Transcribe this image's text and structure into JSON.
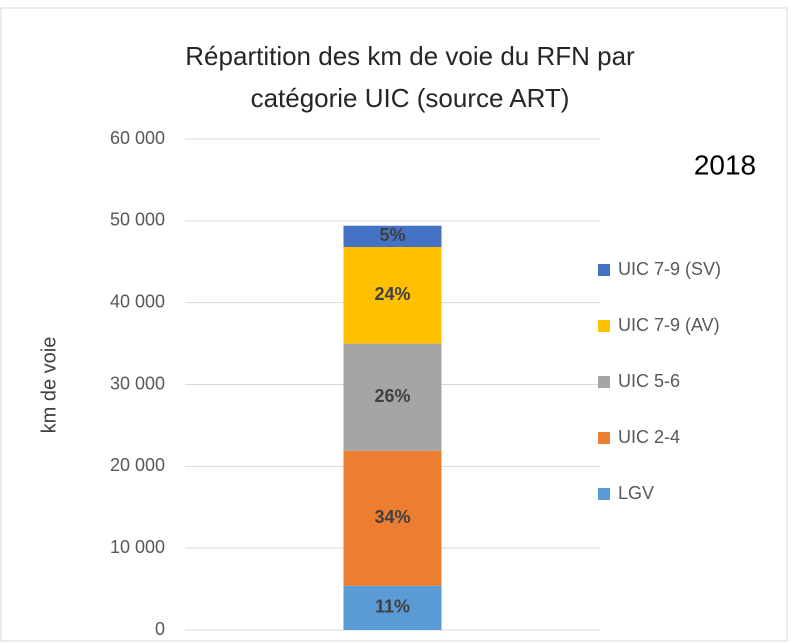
{
  "chart_data": {
    "type": "stacked_bar",
    "title": [
      "Répartition des km de voie du RFN par",
      "catégorie UIC (source ART)"
    ],
    "annotation": "2018",
    "y_label": "km de voie",
    "categories": [
      null
    ],
    "series": [
      {
        "name": "LGV",
        "color": "#5b9bd5",
        "values": [
          5400
        ],
        "share_labels": [
          "11%"
        ]
      },
      {
        "name": "UIC 2-4",
        "color": "#ed7d31",
        "values": [
          16500
        ],
        "share_labels": [
          "34%"
        ]
      },
      {
        "name": "UIC 5-6",
        "color": "#a5a5a5",
        "values": [
          13100
        ],
        "share_labels": [
          "26%"
        ]
      },
      {
        "name": "UIC 7-9 (AV)",
        "color": "#ffc000",
        "values": [
          11800
        ],
        "share_labels": [
          "24%"
        ]
      },
      {
        "name": "UIC 7-9 (SV)",
        "color": "#4472c4",
        "values": [
          2600
        ],
        "share_labels": [
          "5%"
        ]
      }
    ],
    "ylim": [
      0,
      60000
    ],
    "yticks": [
      0,
      {
        "value": 10000,
        "label": "10 000"
      },
      {
        "value": 20000,
        "label": "20 000"
      },
      {
        "value": 30000,
        "label": "30 000"
      },
      {
        "value": 40000,
        "label": "40 000"
      },
      {
        "value": 50000,
        "label": "50 000"
      },
      {
        "value": 60000,
        "label": "60 000"
      }
    ],
    "grid": true,
    "legend": "right"
  }
}
